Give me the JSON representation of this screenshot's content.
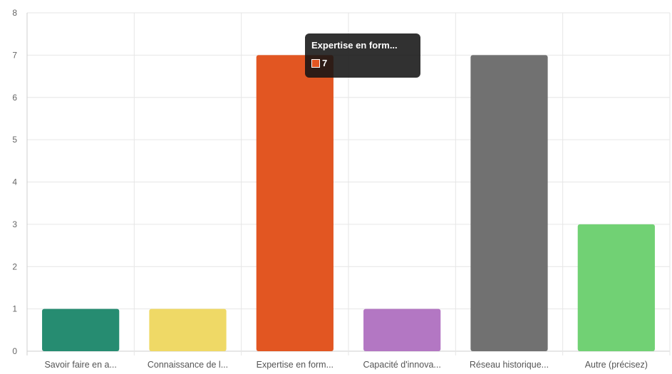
{
  "chart_data": {
    "type": "bar",
    "categories": [
      "Savoir faire en a...",
      "Connaissance de l...",
      "Expertise en form...",
      "Capacité d'innova...",
      "Réseau historique...",
      "Autre (précisez)"
    ],
    "values": [
      1,
      1,
      7,
      1,
      7,
      3
    ],
    "colors": [
      "#268c71",
      "#efd966",
      "#e25622",
      "#b377c3",
      "#717171",
      "#71d174"
    ],
    "ylim": [
      0,
      8
    ],
    "yticks": [
      "0",
      "1",
      "2",
      "3",
      "4",
      "5",
      "6",
      "7",
      "8"
    ],
    "grid": true,
    "title": "",
    "xlabel": "",
    "ylabel": ""
  },
  "tooltip": {
    "title": "Expertise en form...",
    "value": "7",
    "swatch_color": "#e25622"
  }
}
